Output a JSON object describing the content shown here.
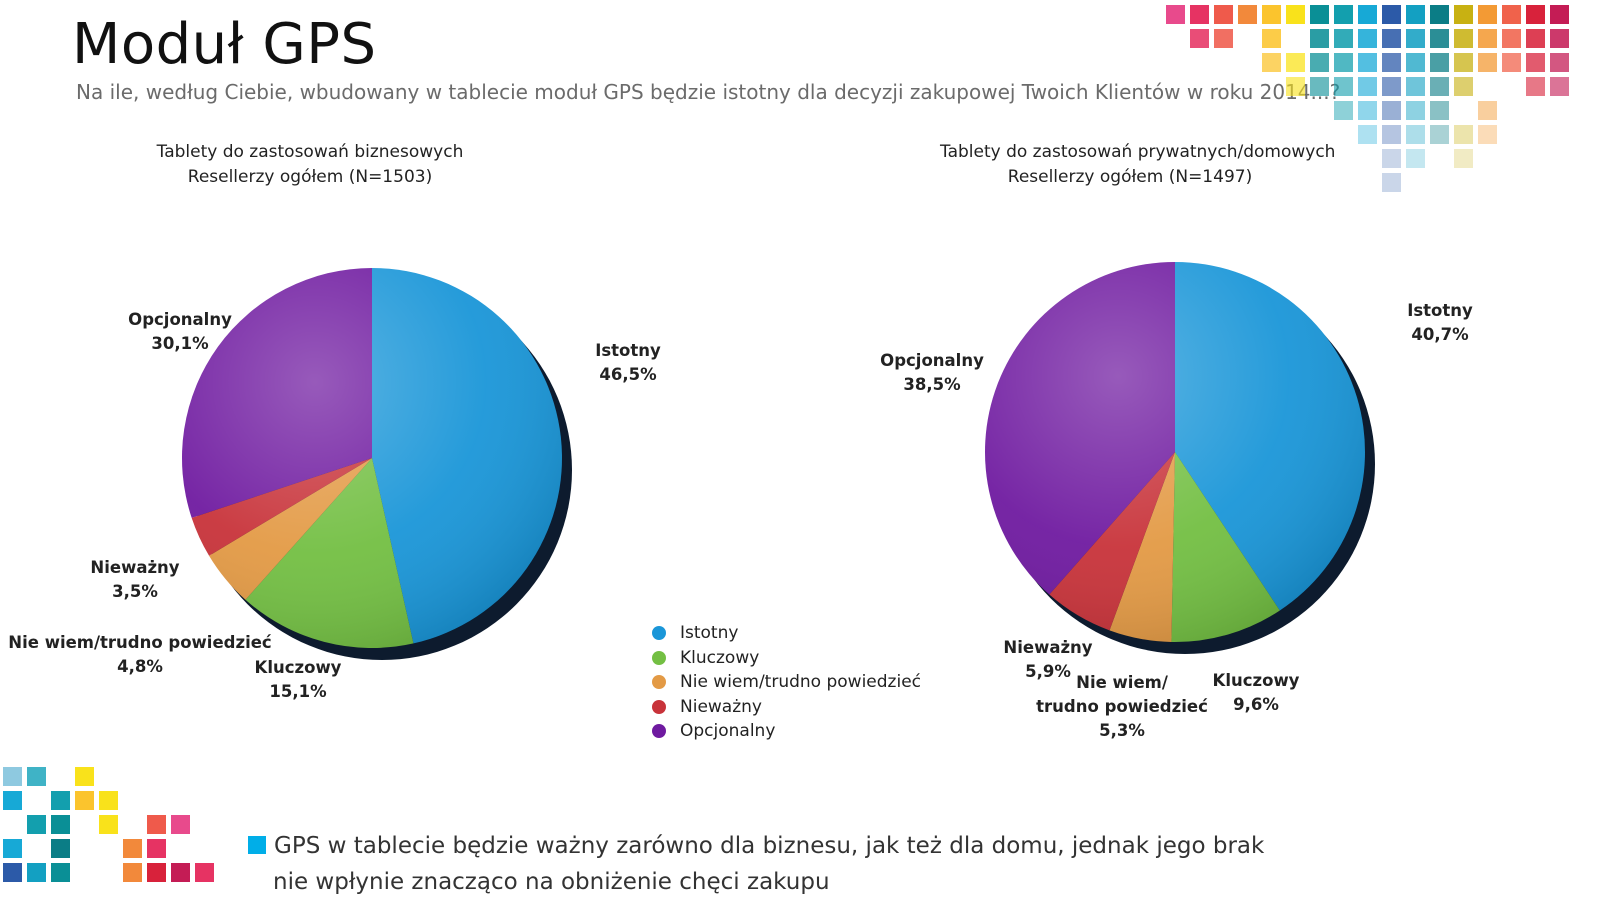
{
  "title": "Moduł GPS",
  "subtitle": "Na ile, według Ciebie, wbudowany w tablecie moduł GPS będzie istotny dla decyzji zakupowej Twoich Klientów w roku 2014...?",
  "colors": {
    "istotny": "#1a96d8",
    "kluczowy": "#73bf43",
    "nie_wiem": "#e39a45",
    "niewazny": "#c8333a",
    "opcjonalny": "#6f1aa0",
    "note_square": "#00aee8"
  },
  "legend": [
    {
      "label": "Istotny",
      "color": "#1a96d8"
    },
    {
      "label": "Kluczowy",
      "color": "#73bf43"
    },
    {
      "label": "Nie wiem/trudno powiedzieć",
      "color": "#e39a45"
    },
    {
      "label": "Nieważny",
      "color": "#c8333a"
    },
    {
      "label": "Opcjonalny",
      "color": "#6f1aa0"
    }
  ],
  "chart_data": [
    {
      "type": "pie",
      "title_line1": "Tablety do zastosowań biznesowych",
      "title_line2": "Resellerzy ogółem (N=1503)",
      "slices": [
        {
          "name": "Istotny",
          "value": 46.5,
          "label": "46,5%",
          "color": "#1a96d8",
          "text_lines": [
            "Istotny"
          ]
        },
        {
          "name": "Kluczowy",
          "value": 15.1,
          "label": "15,1%",
          "color": "#73bf43",
          "text_lines": [
            "Kluczowy"
          ]
        },
        {
          "name": "Nie wiem/trudno powiedzieć",
          "value": 4.8,
          "label": "4,8%",
          "color": "#e39a45",
          "text_lines": [
            "Nie wiem/trudno powiedzieć"
          ]
        },
        {
          "name": "Nieważny",
          "value": 3.5,
          "label": "3,5%",
          "color": "#c8333a",
          "text_lines": [
            "Nieważny"
          ]
        },
        {
          "name": "Opcjonalny",
          "value": 30.1,
          "label": "30,1%",
          "color": "#6f1aa0",
          "text_lines": [
            "Opcjonalny"
          ]
        }
      ]
    },
    {
      "type": "pie",
      "title_line1": "Tablety do zastosowań prywatnych/domowych",
      "title_line2": "Resellerzy ogółem (N=1497)",
      "slices": [
        {
          "name": "Istotny",
          "value": 40.7,
          "label": "40,7%",
          "color": "#1a96d8",
          "text_lines": [
            "Istotny"
          ]
        },
        {
          "name": "Kluczowy",
          "value": 9.6,
          "label": "9,6%",
          "color": "#73bf43",
          "text_lines": [
            "Kluczowy"
          ]
        },
        {
          "name": "Nie wiem/trudno powiedzieć",
          "value": 5.3,
          "label": "5,3%",
          "color": "#e39a45",
          "text_lines": [
            "Nie wiem/",
            "trudno powiedzieć"
          ]
        },
        {
          "name": "Nieważny",
          "value": 5.9,
          "label": "5,9%",
          "color": "#c8333a",
          "text_lines": [
            "Nieważny"
          ]
        },
        {
          "name": "Opcjonalny",
          "value": 38.5,
          "label": "38,5%",
          "color": "#6f1aa0",
          "text_lines": [
            "Opcjonalny"
          ]
        }
      ]
    }
  ],
  "note": {
    "line1": "GPS w tablecie będzie ważny zarówno dla biznesu, jak też dla domu, jednak jego brak",
    "line2": "nie wpłynie znacząco na obniżenie chęci zakupu"
  },
  "mosaic_colors": [
    "#e84a8c",
    "#e63363",
    "#ef5a4b",
    "#f2893b",
    "#fbc42d",
    "#f9e21b",
    "#0a8f96",
    "#139fae",
    "#17a9d6",
    "#2c5aa8",
    "#13a0c2",
    "#0b7d86",
    "#c8b112",
    "#f39a34",
    "#f0624b",
    "#d8223b",
    "#c41c55"
  ]
}
